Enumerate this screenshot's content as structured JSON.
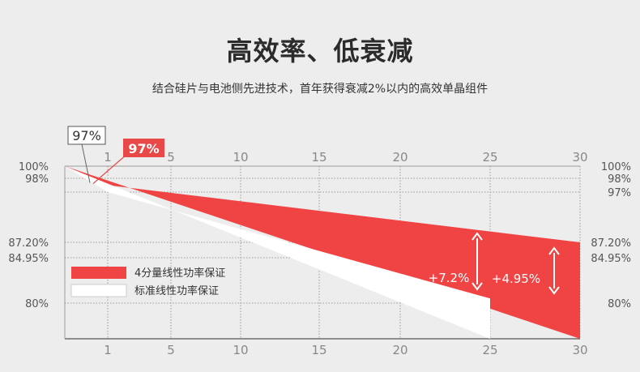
{
  "page": {
    "title": "高效率、低衰减",
    "subtitle": "结合硅片与电池侧先进技术，首年获得衰减2%以内的高效单晶组件"
  },
  "colors": {
    "tiered": "#f04444",
    "standard": "#ffffff",
    "grid": "#9a9a9a",
    "text": "#555555",
    "callout_red": "#e94848"
  },
  "chart_data": {
    "type": "area",
    "x_ticks": [
      1,
      5,
      10,
      15,
      20,
      25,
      30
    ],
    "y_ticks_left": [
      "100%",
      "98%",
      "87.20%",
      "84.95%",
      "80%"
    ],
    "y_ticks_right": [
      "100%",
      "98%",
      "97%",
      "87.20%",
      "84.95%",
      "80%"
    ],
    "xlim": [
      0,
      30
    ],
    "ylim": [
      70,
      100
    ],
    "series": [
      {
        "name": "4分量线性功率保证",
        "points": [
          [
            0,
            100
          ],
          [
            1,
            97.5
          ],
          [
            30,
            87.2
          ],
          [
            30,
            69.5
          ]
        ]
      },
      {
        "name": "标准线性功率保证",
        "points": [
          [
            0,
            100
          ],
          [
            1,
            97
          ],
          [
            25,
            80.5
          ],
          [
            25,
            69.5
          ]
        ]
      }
    ],
    "callouts": [
      {
        "text": "97%",
        "style": "outline"
      },
      {
        "text": "97%",
        "style": "filled"
      }
    ],
    "annotations": [
      {
        "text": "+7.2%",
        "x": 25,
        "from": 80,
        "to": 87.2
      },
      {
        "text": "+4.95%",
        "x": 30,
        "from": 80,
        "to": 84.95
      }
    ]
  }
}
